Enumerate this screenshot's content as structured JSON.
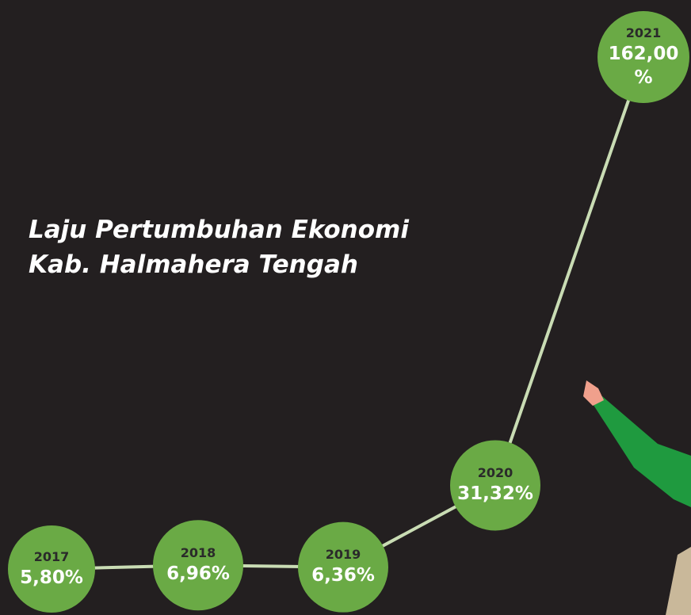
{
  "chart_data": {
    "type": "line",
    "title": "Laju Pertumbuhan Ekonomi\nKab. Halmahera Tengah",
    "categories": [
      "2017",
      "2018",
      "2019",
      "2020",
      "2021"
    ],
    "values": [
      5.8,
      6.96,
      6.36,
      31.32,
      162.0
    ],
    "value_labels": [
      "5,80%",
      "6,96%",
      "6,36%",
      "31,32%",
      "162,00 %"
    ],
    "color": "#6aaa45",
    "line_color": "#c9dcb4"
  }
}
